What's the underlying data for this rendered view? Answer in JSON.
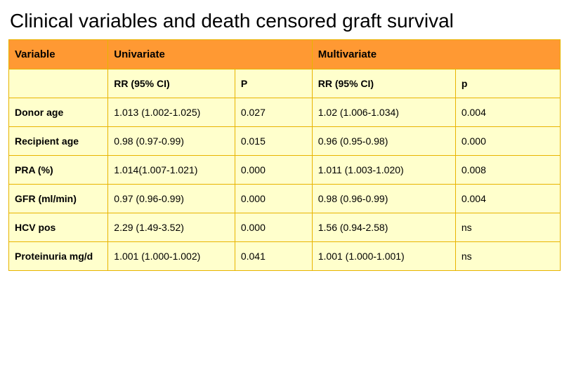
{
  "title": "Clinical variables and death censored graft survival",
  "table": {
    "colors": {
      "header_bg": "#ff9933",
      "body_bg": "#ffffcc",
      "border": "#e8b400",
      "text": "#000000"
    },
    "header1": {
      "variable": "Variable",
      "univariate": "Univariate",
      "multivariate": "Multivariate"
    },
    "header2": {
      "rr_uni": "RR (95% CI)",
      "p_uni": "P",
      "rr_multi": "RR (95% CI)",
      "p_multi": "p"
    },
    "column_widths_pct": [
      18,
      23,
      14,
      26,
      19
    ],
    "rows": [
      {
        "variable": "Donor age",
        "rr_uni": "1.013 (1.002-1.025)",
        "p_uni": "0.027",
        "rr_multi": "1.02 (1.006-1.034)",
        "p_multi": "0.004"
      },
      {
        "variable": "Recipient age",
        "rr_uni": "0.98 (0.97-0.99)",
        "p_uni": "0.015",
        "rr_multi": "0.96 (0.95-0.98)",
        "p_multi": "0.000"
      },
      {
        "variable": "PRA (%)",
        "rr_uni": "1.014(1.007-1.021)",
        "p_uni": "0.000",
        "rr_multi": "1.011 (1.003-1.020)",
        "p_multi": "0.008"
      },
      {
        "variable": "GFR (ml/min)",
        "rr_uni": "0.97 (0.96-0.99)",
        "p_uni": "0.000",
        "rr_multi": "0.98 (0.96-0.99)",
        "p_multi": "0.004"
      },
      {
        "variable": "HCV pos",
        "rr_uni": "2.29 (1.49-3.52)",
        "p_uni": "0.000",
        "rr_multi": "1.56 (0.94-2.58)",
        "p_multi": "ns"
      },
      {
        "variable": "Proteinuria mg/d",
        "rr_uni": "1.001 (1.000-1.002)",
        "p_uni": "0.041",
        "rr_multi": "1.001 (1.000-1.001)",
        "p_multi": "ns"
      }
    ]
  }
}
